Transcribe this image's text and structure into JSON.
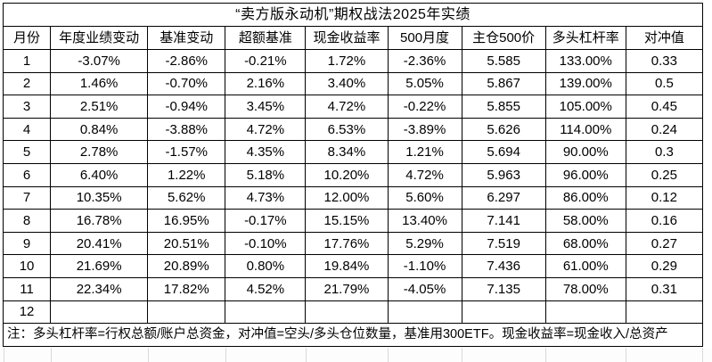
{
  "title": "“卖方版永动机”期权战法2025年实绩",
  "note": "注：多头杠杆率=行权总额/账户总资金，对冲值=空头/多头仓位数量，基准用300ETF。现金收益率=现金收入/总资产",
  "colors": {
    "text": "#000000",
    "table_border": "#000000",
    "background": "#ffffff",
    "sheet_gridline": "#d9d9d9"
  },
  "chart_data": {
    "type": "table",
    "title": "“卖方版永动机”期权战法2025年实绩",
    "columns": [
      "月份",
      "年度业绩变动",
      "基准变动",
      "超额基准",
      "现金收益率",
      "500月度",
      "主仓500价",
      "多头杠杆率",
      "对冲值"
    ],
    "rows": [
      [
        "1",
        "-3.07%",
        "-2.86%",
        "-0.21%",
        "1.72%",
        "-2.36%",
        "5.585",
        "133.00%",
        "0.33"
      ],
      [
        "2",
        "1.46%",
        "-0.70%",
        "2.16%",
        "3.40%",
        "5.05%",
        "5.867",
        "139.00%",
        "0.5"
      ],
      [
        "3",
        "2.51%",
        "-0.94%",
        "3.45%",
        "4.72%",
        "-0.22%",
        "5.855",
        "105.00%",
        "0.45"
      ],
      [
        "4",
        "0.84%",
        "-3.88%",
        "4.72%",
        "6.53%",
        "-3.89%",
        "5.626",
        "114.00%",
        "0.24"
      ],
      [
        "5",
        "2.78%",
        "-1.57%",
        "4.35%",
        "8.34%",
        "1.21%",
        "5.694",
        "90.00%",
        "0.3"
      ],
      [
        "6",
        "6.40%",
        "1.22%",
        "5.18%",
        "10.20%",
        "4.72%",
        "5.963",
        "96.00%",
        "0.25"
      ],
      [
        "7",
        "10.35%",
        "5.62%",
        "4.73%",
        "12.00%",
        "5.60%",
        "6.297",
        "86.00%",
        "0.12"
      ],
      [
        "8",
        "16.78%",
        "16.95%",
        "-0.17%",
        "15.15%",
        "13.40%",
        "7.141",
        "58.00%",
        "0.16"
      ],
      [
        "9",
        "20.41%",
        "20.51%",
        "-0.10%",
        "17.76%",
        "5.29%",
        "7.519",
        "68.00%",
        "0.27"
      ],
      [
        "10",
        "21.69%",
        "20.89%",
        "0.80%",
        "19.84%",
        "-1.10%",
        "7.436",
        "61.00%",
        "0.29"
      ],
      [
        "11",
        "22.34%",
        "17.82%",
        "4.52%",
        "21.79%",
        "-4.05%",
        "7.135",
        "78.00%",
        "0.31"
      ],
      [
        "12",
        "",
        "",
        "",
        "",
        "",
        "",
        "",
        ""
      ]
    ],
    "footnote": "注：多头杠杆率=行权总额/账户总资金，对冲值=空头/多头仓位数量，基准用300ETF。现金收益率=现金收入/总资产"
  }
}
